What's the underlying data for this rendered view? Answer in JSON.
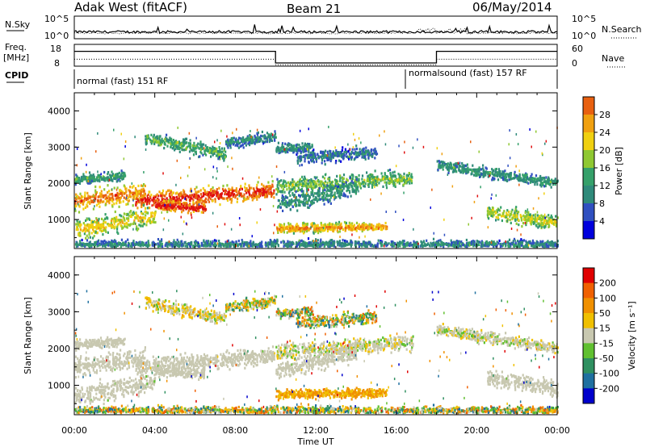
{
  "header": {
    "station": "Adak West (fitACF)",
    "beam": "Beam 21",
    "date": "06/May/2014"
  },
  "colors": {
    "power_scale": [
      "#0000dd",
      "#3050c0",
      "#2f8a7a",
      "#35a06a",
      "#8fc832",
      "#f0d010",
      "#f0a010",
      "#e86010",
      "#e01010"
    ],
    "velocity_scale": [
      "#0000cc",
      "#1f70a0",
      "#2f9060",
      "#60c030",
      "#c8c8b0",
      "#f0c000",
      "#f09000",
      "#f06000",
      "#e00000"
    ]
  },
  "chart_data": [
    {
      "type": "line",
      "name": "sky-noise-panel",
      "ylabel": "N.Sky",
      "yticks_left": [
        "10^5",
        "10^0"
      ],
      "right_label": "N.Search",
      "yticks_right": [
        "10^5",
        "10^0"
      ],
      "xlim": [
        0,
        24
      ]
    },
    {
      "type": "line",
      "name": "frequency-panel",
      "ylabel": "Freq.",
      "yunit": "[MHz]",
      "ylim": [
        8,
        18
      ],
      "yticks_left": [
        "18",
        "8"
      ],
      "right_label": "Nave",
      "yticks_right": [
        "60",
        "0"
      ],
      "freq_segments": [
        {
          "x": [
            0,
            10
          ],
          "y": 14.8
        },
        {
          "x": [
            10,
            18
          ],
          "y": 9.5
        },
        {
          "x": [
            18,
            24
          ],
          "y": 14.8
        }
      ],
      "nave_segments": [
        {
          "x": [
            0,
            10
          ],
          "y": 11.2
        },
        {
          "x": [
            10,
            18
          ],
          "y": 8.6
        },
        {
          "x": [
            18,
            24
          ],
          "y": 11.2
        }
      ]
    },
    {
      "type": "table",
      "name": "cpid-panel",
      "label": "CPID",
      "modes": [
        {
          "text": "normal (fast) 151 RF",
          "start": 0
        },
        {
          "text": "normalsound (fast) 157 RF",
          "start": 16.5
        }
      ]
    },
    {
      "type": "heatmap",
      "name": "power-panel",
      "ylabel": "Slant Range [km]",
      "ylim": [
        200,
        4500
      ],
      "yticks": [
        1000,
        2000,
        3000,
        4000
      ],
      "colorbar_label": "Power [dB]",
      "colorbar_ticks": [
        "28",
        "24",
        "20",
        "16",
        "12",
        "8",
        "4"
      ]
    },
    {
      "type": "heatmap",
      "name": "velocity-panel",
      "ylabel": "Slant Range [km]",
      "ylim": [
        200,
        4500
      ],
      "yticks": [
        1000,
        2000,
        3000,
        4000
      ],
      "colorbar_label": "Velocity [m s⁻¹]",
      "colorbar_ticks": [
        "200",
        "100",
        "50",
        "15",
        "-15",
        "-50",
        "-100",
        "-200"
      ]
    }
  ],
  "xaxis": {
    "label": "Time UT",
    "ticks": [
      "00:00",
      "04:00",
      "08:00",
      "12:00",
      "16:00",
      "20:00",
      "00:00"
    ],
    "xlim": [
      0,
      24
    ]
  }
}
